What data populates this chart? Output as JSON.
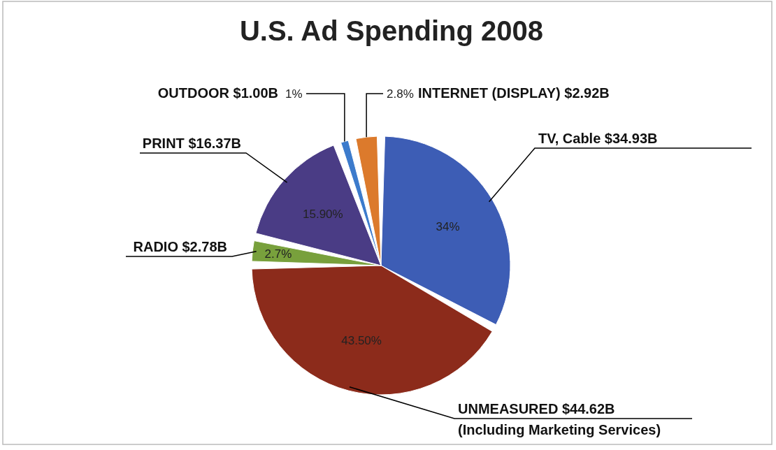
{
  "chart_data": {
    "type": "pie",
    "title": "U.S. Ad Spending 2008",
    "categories": [
      "TV, Cable $34.93B",
      "UNMEASURED $44.62B\n(Including Marketing Services)",
      "RADIO $2.78B",
      "PRINT $16.37B",
      "OUTDOOR $1.00B",
      "INTERNET (DISPLAY) $2.92B"
    ],
    "values": [
      34,
      43.5,
      2.7,
      15.9,
      1,
      2.8
    ],
    "value_labels": [
      "34%",
      "43.50%",
      "2.7%",
      "15.90%",
      "1%",
      "2.8%"
    ],
    "colors": [
      "#3d5db5",
      "#8c2b1b",
      "#78a03c",
      "#4a3c85",
      "#3c7bcc",
      "#dc7a2c"
    ]
  }
}
